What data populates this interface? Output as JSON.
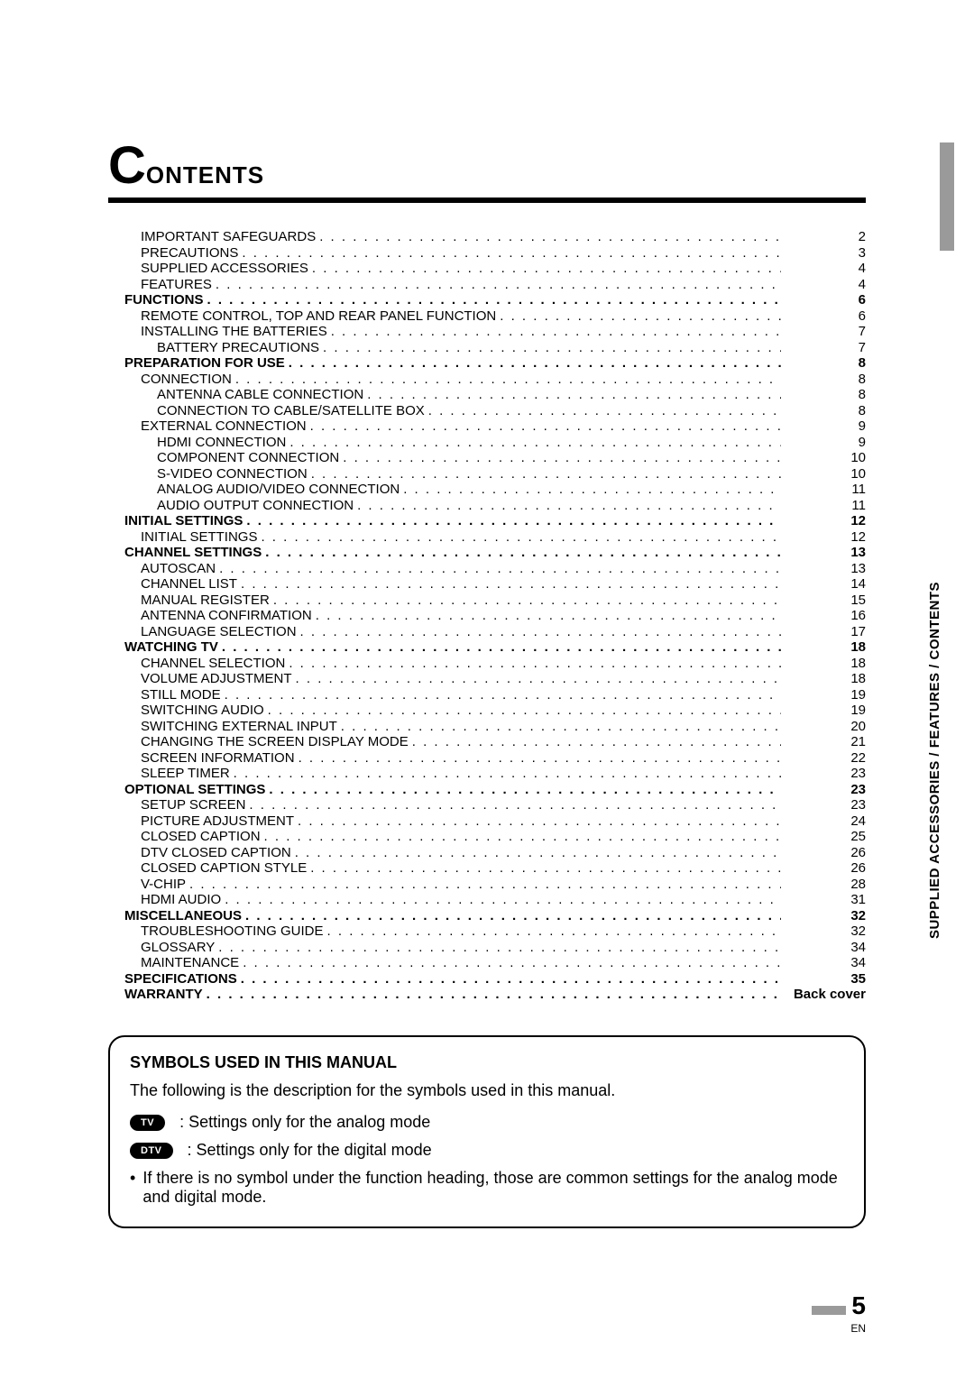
{
  "title": {
    "big": "C",
    "rest": "ONTENTS"
  },
  "side_label": "SUPPLIED ACCESSORIES / FEATURES / CONTENTS",
  "toc": [
    {
      "label": "IMPORTANT SAFEGUARDS",
      "page": "2",
      "indent": 2,
      "bold": false
    },
    {
      "label": "PRECAUTIONS",
      "page": "3",
      "indent": 2,
      "bold": false
    },
    {
      "label": "SUPPLIED ACCESSORIES",
      "page": "4",
      "indent": 2,
      "bold": false
    },
    {
      "label": "FEATURES",
      "page": "4",
      "indent": 2,
      "bold": false
    },
    {
      "label": "FUNCTIONS",
      "page": "6",
      "indent": 1,
      "bold": true
    },
    {
      "label": "REMOTE CONTROL, TOP AND REAR PANEL FUNCTION",
      "page": "6",
      "indent": 2,
      "bold": false
    },
    {
      "label": "INSTALLING THE BATTERIES",
      "page": "7",
      "indent": 2,
      "bold": false
    },
    {
      "label": "BATTERY PRECAUTIONS",
      "page": "7",
      "indent": 3,
      "bold": false
    },
    {
      "label": "PREPARATION FOR USE",
      "page": "8",
      "indent": 1,
      "bold": true
    },
    {
      "label": "CONNECTION",
      "page": "8",
      "indent": 2,
      "bold": false
    },
    {
      "label": "ANTENNA CABLE CONNECTION",
      "page": "8",
      "indent": 3,
      "bold": false
    },
    {
      "label": "CONNECTION TO CABLE/SATELLITE BOX",
      "page": "8",
      "indent": 3,
      "bold": false
    },
    {
      "label": "EXTERNAL CONNECTION",
      "page": "9",
      "indent": 2,
      "bold": false
    },
    {
      "label": "HDMI CONNECTION",
      "page": "9",
      "indent": 3,
      "bold": false
    },
    {
      "label": "COMPONENT CONNECTION",
      "page": "10",
      "indent": 3,
      "bold": false
    },
    {
      "label": "S-VIDEO CONNECTION",
      "page": "10",
      "indent": 3,
      "bold": false
    },
    {
      "label": "ANALOG AUDIO/VIDEO CONNECTION",
      "page": "11",
      "indent": 3,
      "bold": false
    },
    {
      "label": "AUDIO OUTPUT CONNECTION",
      "page": "11",
      "indent": 3,
      "bold": false
    },
    {
      "label": "INITIAL SETTINGS",
      "page": "12",
      "indent": 1,
      "bold": true
    },
    {
      "label": "INITIAL SETTINGS",
      "page": "12",
      "indent": 2,
      "bold": false
    },
    {
      "label": "CHANNEL SETTINGS",
      "page": "13",
      "indent": 1,
      "bold": true
    },
    {
      "label": "AUTOSCAN",
      "page": "13",
      "indent": 2,
      "bold": false
    },
    {
      "label": "CHANNEL LIST",
      "page": "14",
      "indent": 2,
      "bold": false
    },
    {
      "label": "MANUAL REGISTER",
      "page": "15",
      "indent": 2,
      "bold": false
    },
    {
      "label": "ANTENNA CONFIRMATION",
      "page": "16",
      "indent": 2,
      "bold": false
    },
    {
      "label": "LANGUAGE SELECTION",
      "page": "17",
      "indent": 2,
      "bold": false
    },
    {
      "label": "WATCHING TV",
      "page": "18",
      "indent": 1,
      "bold": true
    },
    {
      "label": "CHANNEL SELECTION",
      "page": "18",
      "indent": 2,
      "bold": false
    },
    {
      "label": "VOLUME ADJUSTMENT",
      "page": "18",
      "indent": 2,
      "bold": false
    },
    {
      "label": "STILL MODE",
      "page": "19",
      "indent": 2,
      "bold": false
    },
    {
      "label": "SWITCHING AUDIO",
      "page": "19",
      "indent": 2,
      "bold": false
    },
    {
      "label": "SWITCHING EXTERNAL INPUT",
      "page": "20",
      "indent": 2,
      "bold": false
    },
    {
      "label": "CHANGING THE SCREEN DISPLAY MODE",
      "page": "21",
      "indent": 2,
      "bold": false
    },
    {
      "label": "SCREEN INFORMATION",
      "page": "22",
      "indent": 2,
      "bold": false
    },
    {
      "label": "SLEEP TIMER",
      "page": "23",
      "indent": 2,
      "bold": false
    },
    {
      "label": "OPTIONAL SETTINGS",
      "page": "23",
      "indent": 1,
      "bold": true
    },
    {
      "label": "SETUP SCREEN",
      "page": "23",
      "indent": 2,
      "bold": false
    },
    {
      "label": "PICTURE ADJUSTMENT",
      "page": "24",
      "indent": 2,
      "bold": false
    },
    {
      "label": "CLOSED CAPTION",
      "page": "25",
      "indent": 2,
      "bold": false
    },
    {
      "label": "DTV CLOSED CAPTION",
      "page": "26",
      "indent": 2,
      "bold": false
    },
    {
      "label": "CLOSED CAPTION STYLE",
      "page": "26",
      "indent": 2,
      "bold": false
    },
    {
      "label": "V-CHIP",
      "page": "28",
      "indent": 2,
      "bold": false
    },
    {
      "label": "HDMI AUDIO",
      "page": "31",
      "indent": 2,
      "bold": false
    },
    {
      "label": "MISCELLANEOUS",
      "page": "32",
      "indent": 1,
      "bold": true
    },
    {
      "label": "TROUBLESHOOTING GUIDE",
      "page": "32",
      "indent": 2,
      "bold": false
    },
    {
      "label": "GLOSSARY",
      "page": "34",
      "indent": 2,
      "bold": false
    },
    {
      "label": "MAINTENANCE",
      "page": "34",
      "indent": 2,
      "bold": false
    },
    {
      "label": "SPECIFICATIONS",
      "page": "35",
      "indent": 1,
      "bold": true
    },
    {
      "label": "WARRANTY",
      "page": "Back cover",
      "indent": 1,
      "bold": true
    }
  ],
  "symbols": {
    "heading": "SYMBOLS USED IN THIS MANUAL",
    "intro": "The following is the description for the symbols used in this manual.",
    "items": [
      {
        "badge": "TV",
        "text": ": Settings only for the analog mode"
      },
      {
        "badge": "DTV",
        "text": ": Settings only for the digital mode"
      }
    ],
    "note": "If there is no symbol under the function heading, those are common settings for the analog mode and digital mode."
  },
  "footer": {
    "page_number": "5",
    "lang": "EN"
  }
}
